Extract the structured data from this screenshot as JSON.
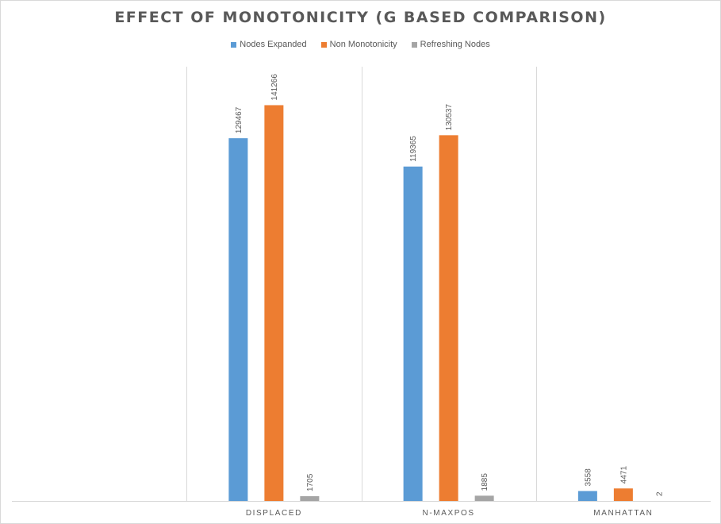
{
  "chart_data": {
    "type": "bar",
    "title": "EFFECT OF MONOTONICITY (G BASED COMPARISON)",
    "xlabel": "",
    "ylabel": "",
    "ylim": [
      0,
      155000
    ],
    "grid": "vertical category separators",
    "legend_position": "top",
    "categories": [
      "",
      "DISPLACED",
      "N-MAXPOS",
      "MANHATTAN"
    ],
    "series": [
      {
        "name": "Nodes Expanded",
        "color": "#5B9BD5",
        "values": [
          null,
          129467,
          119365,
          3558
        ]
      },
      {
        "name": "Non Monotonicity",
        "color": "#ED7D31",
        "values": [
          null,
          141266,
          130537,
          4471
        ]
      },
      {
        "name": "Refreshing Nodes",
        "color": "#A5A5A5",
        "values": [
          null,
          1705,
          1885,
          2
        ]
      }
    ]
  }
}
